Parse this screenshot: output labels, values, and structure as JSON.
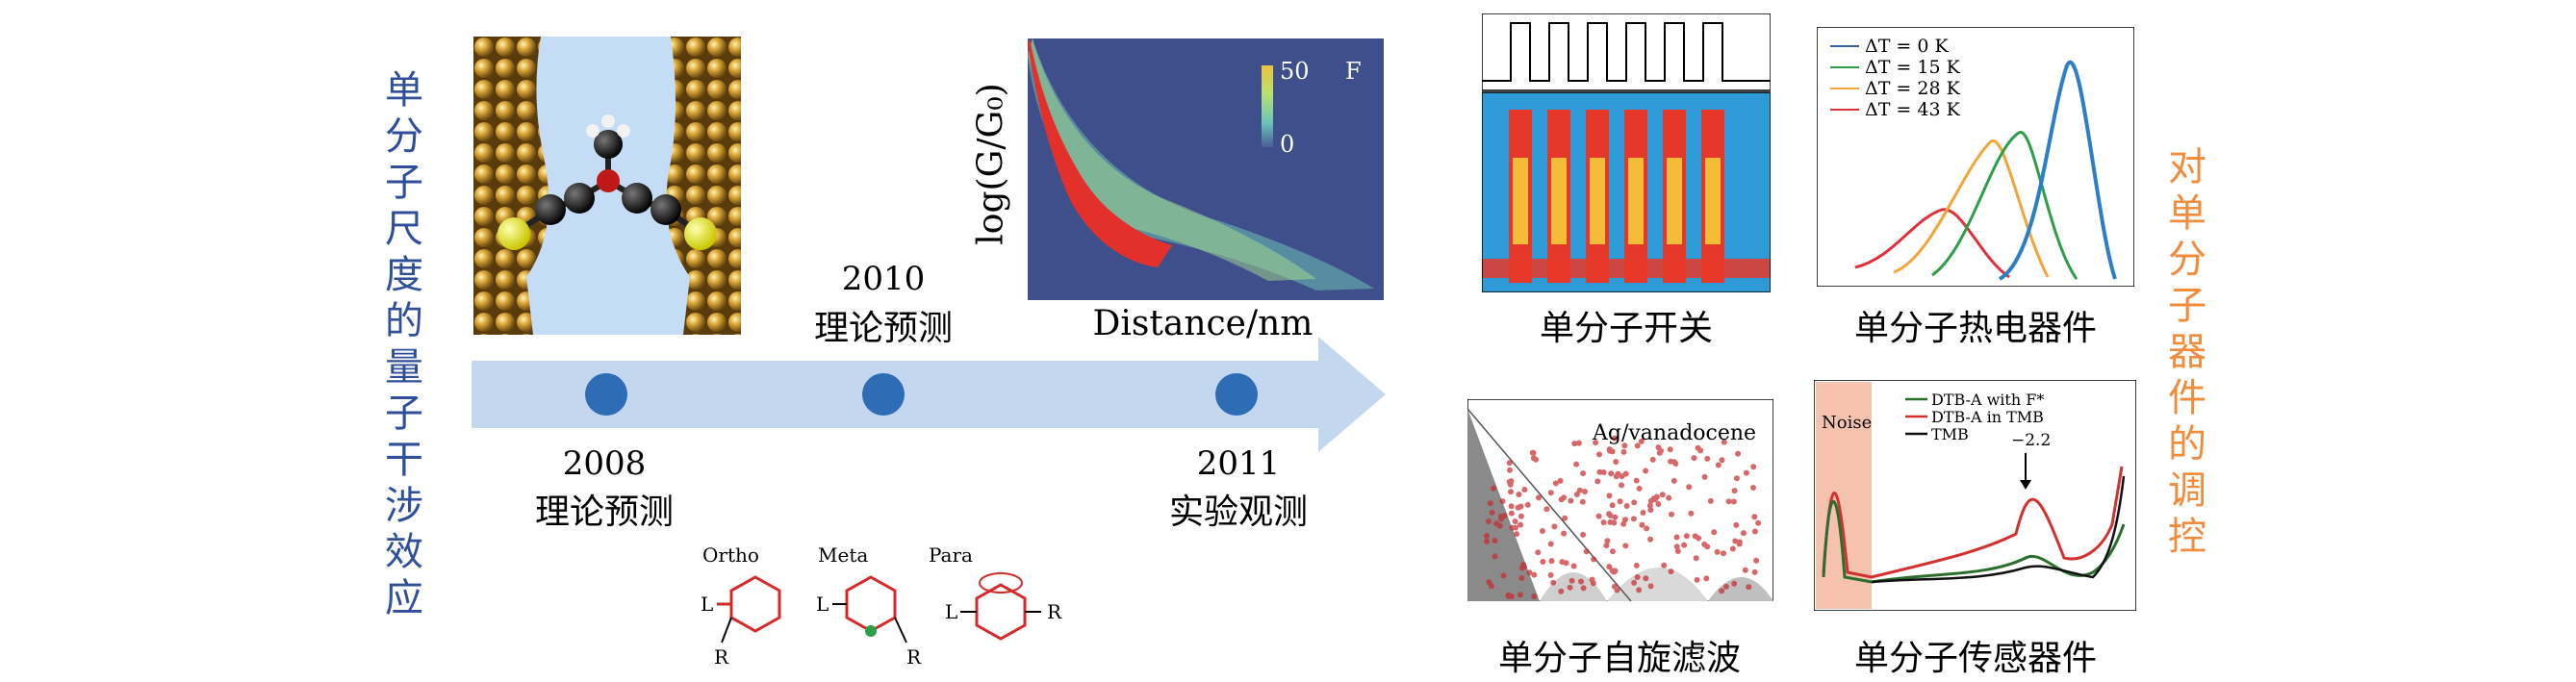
{
  "left_vertical_title": "单分子尺度的量子干涉效应",
  "right_vertical_title": "对单分子器件的调控",
  "timeline": {
    "above": [
      {
        "year": "2010",
        "label": "理论预测"
      }
    ],
    "below": [
      {
        "year": "2008",
        "label": "理论预测"
      },
      {
        "year": "2011",
        "label": "实验观测"
      }
    ]
  },
  "conductance_plot": {
    "ylabel": "log(G/G₀)",
    "xlabel": "Distance/nm",
    "colorbar_max": "50",
    "colorbar_min": "0",
    "colorbar_unit": "F"
  },
  "molecules": {
    "labels": [
      "Ortho",
      "Meta",
      "Para"
    ],
    "L": "L",
    "R": "R"
  },
  "panels": {
    "switch": {
      "caption": "单分子开关"
    },
    "thermo": {
      "caption": "单分子热电器件",
      "legend": [
        "ΔT = 0 K",
        "ΔT = 15 K",
        "ΔT = 28 K",
        "ΔT = 43 K"
      ],
      "legend_colors": [
        "#3a5fa8",
        "#2e9e4a",
        "#f3a43a",
        "#e0303a"
      ]
    },
    "spin": {
      "caption": "单分子自旋滤波",
      "annotation": "Ag/vanadocene"
    },
    "sensor": {
      "caption": "单分子传感器件",
      "noise_label": "Noise",
      "legend": [
        "DTB-A with F*",
        "DTB-A in TMB",
        "TMB"
      ],
      "legend_colors": [
        "#2c6e2c",
        "#d33030",
        "#111111"
      ],
      "peak_label": "−2.2"
    }
  },
  "colors": {
    "left_title": "#2f4f9a",
    "right_title": "#f08c3c",
    "arrow": "#c3d8ef",
    "dot": "#2c6db6"
  }
}
